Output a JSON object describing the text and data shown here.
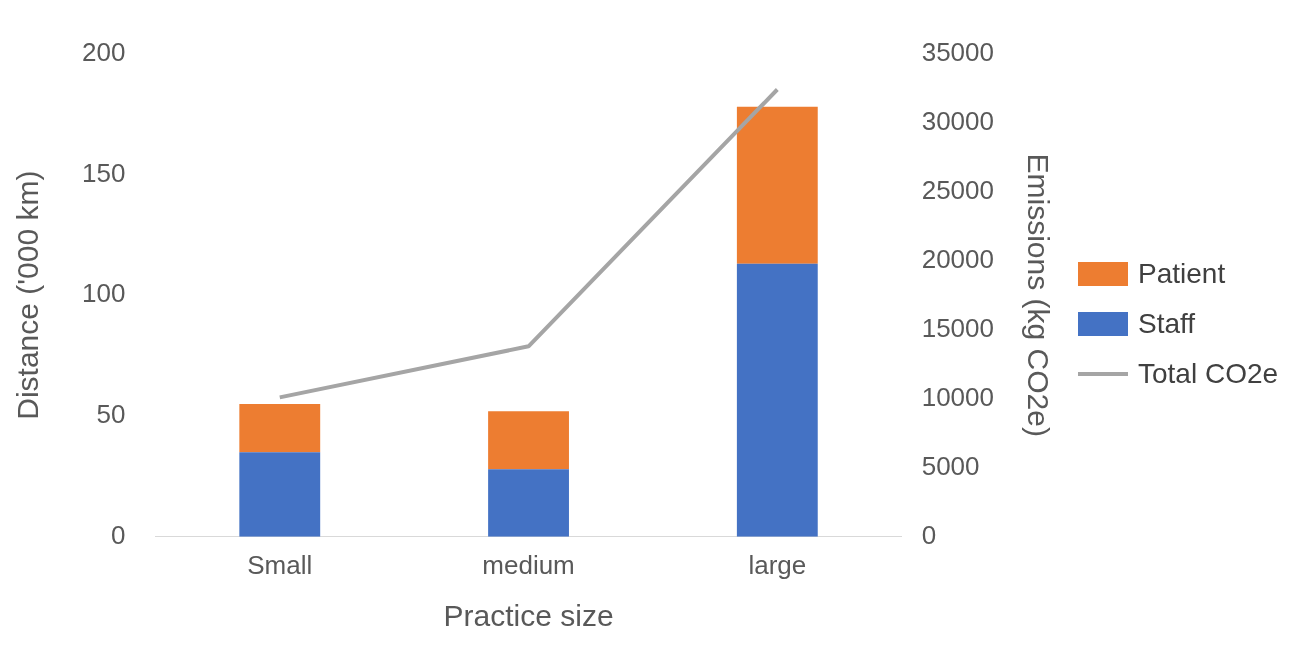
{
  "chart_data": {
    "type": "bar",
    "stacked": true,
    "categories": [
      "Small",
      "medium",
      "large"
    ],
    "xlabel": "Practice size",
    "ylabel": "Distance ('000 km)",
    "y2label": "Emissions (kg CO2e)",
    "ylim": [
      0,
      200
    ],
    "yticks": [
      0,
      50,
      100,
      150,
      200
    ],
    "y2lim": [
      0,
      35000
    ],
    "y2ticks": [
      0,
      5000,
      10000,
      15000,
      20000,
      25000,
      30000,
      35000
    ],
    "grid": false,
    "legend": "right",
    "marker": "none",
    "series": [
      {
        "name": "Staff",
        "color": "#4472c4",
        "values": [
          35,
          28,
          113
        ]
      },
      {
        "name": "Patient",
        "color": "#ed7d31",
        "values": [
          20,
          24,
          65
        ]
      },
      {
        "name": "Total CO2e",
        "type": "line",
        "axis": "y2",
        "color": "#a5a5a5",
        "line_style": "solid",
        "values": [
          10100,
          13800,
          32400
        ]
      }
    ]
  }
}
